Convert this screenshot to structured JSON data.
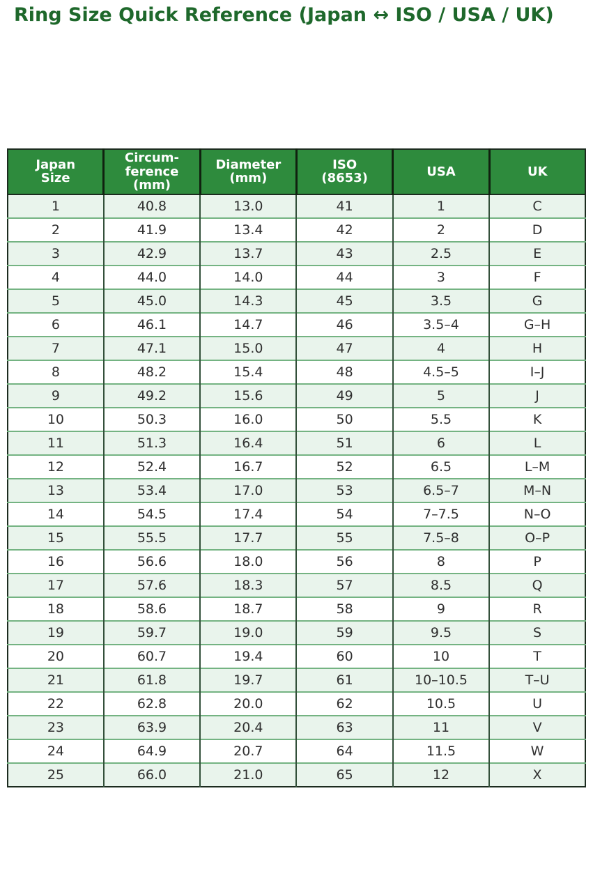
{
  "page": {
    "title": "Ring Size Quick Reference (Japan ↔ ISO / USA / UK)"
  },
  "colors": {
    "title_green": "#1e682b",
    "header_bg": "#2e8b3d",
    "header_text": "#ffffff",
    "header_line": "#10210f",
    "stripe_row_bg": "#e9f4ec",
    "plain_row_bg": "#ffffff",
    "cell_text": "#2f2f2f",
    "row_line": "#74b382",
    "column_line": "#33503a",
    "outer_border": "#1c2b1f"
  },
  "chart_data": {
    "type": "table",
    "title": "Ring Size Quick Reference (Japan ↔ ISO / USA / UK)",
    "columns": [
      "Japan\nSize",
      "Circum-\nference\n(mm)",
      "Diameter\n(mm)",
      "ISO\n(8653)",
      "USA",
      "UK"
    ],
    "rows": [
      [
        "1",
        "40.8",
        "13.0",
        "41",
        "1",
        "C"
      ],
      [
        "2",
        "41.9",
        "13.4",
        "42",
        "2",
        "D"
      ],
      [
        "3",
        "42.9",
        "13.7",
        "43",
        "2.5",
        "E"
      ],
      [
        "4",
        "44.0",
        "14.0",
        "44",
        "3",
        "F"
      ],
      [
        "5",
        "45.0",
        "14.3",
        "45",
        "3.5",
        "G"
      ],
      [
        "6",
        "46.1",
        "14.7",
        "46",
        "3.5–4",
        "G–H"
      ],
      [
        "7",
        "47.1",
        "15.0",
        "47",
        "4",
        "H"
      ],
      [
        "8",
        "48.2",
        "15.4",
        "48",
        "4.5–5",
        "I–J"
      ],
      [
        "9",
        "49.2",
        "15.6",
        "49",
        "5",
        "J"
      ],
      [
        "10",
        "50.3",
        "16.0",
        "50",
        "5.5",
        "K"
      ],
      [
        "11",
        "51.3",
        "16.4",
        "51",
        "6",
        "L"
      ],
      [
        "12",
        "52.4",
        "16.7",
        "52",
        "6.5",
        "L–M"
      ],
      [
        "13",
        "53.4",
        "17.0",
        "53",
        "6.5–7",
        "M–N"
      ],
      [
        "14",
        "54.5",
        "17.4",
        "54",
        "7–7.5",
        "N–O"
      ],
      [
        "15",
        "55.5",
        "17.7",
        "55",
        "7.5–8",
        "O–P"
      ],
      [
        "16",
        "56.6",
        "18.0",
        "56",
        "8",
        "P"
      ],
      [
        "17",
        "57.6",
        "18.3",
        "57",
        "8.5",
        "Q"
      ],
      [
        "18",
        "58.6",
        "18.7",
        "58",
        "9",
        "R"
      ],
      [
        "19",
        "59.7",
        "19.0",
        "59",
        "9.5",
        "S"
      ],
      [
        "20",
        "60.7",
        "19.4",
        "60",
        "10",
        "T"
      ],
      [
        "21",
        "61.8",
        "19.7",
        "61",
        "10–10.5",
        "T–U"
      ],
      [
        "22",
        "62.8",
        "20.0",
        "62",
        "10.5",
        "U"
      ],
      [
        "23",
        "63.9",
        "20.4",
        "63",
        "11",
        "V"
      ],
      [
        "24",
        "64.9",
        "20.7",
        "64",
        "11.5",
        "W"
      ],
      [
        "25",
        "66.0",
        "21.0",
        "65",
        "12",
        "X"
      ]
    ]
  }
}
